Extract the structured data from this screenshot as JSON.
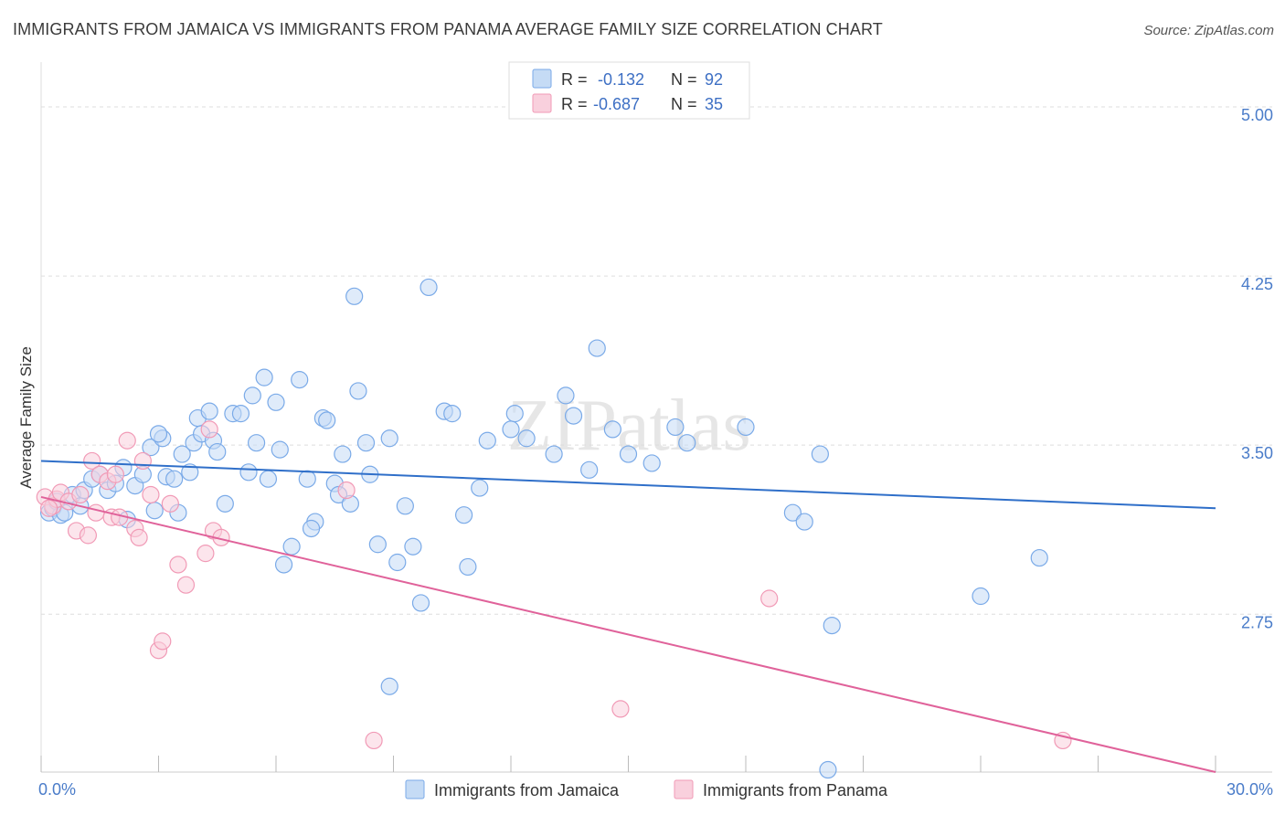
{
  "title": "IMMIGRANTS FROM JAMAICA VS IMMIGRANTS FROM PANAMA AVERAGE FAMILY SIZE CORRELATION CHART",
  "source": "Source: ZipAtlas.com",
  "watermark": "ZIPatlas",
  "colors": {
    "jamaica": "#7aaae8",
    "jamaica_fill": "#c5dbf5",
    "jamaica_line": "#2f6fc9",
    "panama": "#f19ab6",
    "panama_fill": "#f9d0dd",
    "panama_line": "#e0629a",
    "tick_text": "#4a7cc9",
    "grid": "#dddddd"
  },
  "legend": {
    "rows": [
      {
        "r_label": "R =",
        "r_value": "-0.132",
        "n_label": "N =",
        "n_value": "92"
      },
      {
        "r_label": "R =",
        "r_value": "-0.687",
        "n_label": "N =",
        "n_value": "35"
      }
    ]
  },
  "chart_data": {
    "type": "scatter",
    "title": "IMMIGRANTS FROM JAMAICA VS IMMIGRANTS FROM PANAMA AVERAGE FAMILY SIZE CORRELATION CHART",
    "xlabel": "",
    "ylabel": "Average Family Size",
    "xlim": [
      0,
      30
    ],
    "ylim": [
      2.05,
      5.15
    ],
    "x_tick_labels": [
      "0.0%",
      "30.0%"
    ],
    "y_ticks": [
      2.75,
      3.5,
      4.25,
      5.0
    ],
    "y_tick_labels": [
      "2.75",
      "3.50",
      "4.25",
      "5.00"
    ],
    "grid": true,
    "legend_position": "bottom",
    "series": [
      {
        "name": "Immigrants from Jamaica",
        "r": -0.132,
        "n": 92,
        "trend": {
          "x": [
            0,
            30
          ],
          "y": [
            3.43,
            3.22
          ]
        },
        "points": [
          [
            0.2,
            3.2
          ],
          [
            0.3,
            3.22
          ],
          [
            0.4,
            3.25
          ],
          [
            0.5,
            3.19
          ],
          [
            0.6,
            3.2
          ],
          [
            0.8,
            3.28
          ],
          [
            1.0,
            3.23
          ],
          [
            1.1,
            3.3
          ],
          [
            1.3,
            3.35
          ],
          [
            1.5,
            3.37
          ],
          [
            1.7,
            3.3
          ],
          [
            1.9,
            3.33
          ],
          [
            2.1,
            3.4
          ],
          [
            2.2,
            3.17
          ],
          [
            2.4,
            3.32
          ],
          [
            2.6,
            3.37
          ],
          [
            2.8,
            3.49
          ],
          [
            2.9,
            3.21
          ],
          [
            3.1,
            3.53
          ],
          [
            3.2,
            3.36
          ],
          [
            3.4,
            3.35
          ],
          [
            3.5,
            3.2
          ],
          [
            3.6,
            3.46
          ],
          [
            3.8,
            3.38
          ],
          [
            3.9,
            3.51
          ],
          [
            4.0,
            3.62
          ],
          [
            4.1,
            3.55
          ],
          [
            4.3,
            3.65
          ],
          [
            4.4,
            3.52
          ],
          [
            4.5,
            3.47
          ],
          [
            4.7,
            3.24
          ],
          [
            4.9,
            3.64
          ],
          [
            5.1,
            3.64
          ],
          [
            5.3,
            3.38
          ],
          [
            5.4,
            3.72
          ],
          [
            5.5,
            3.51
          ],
          [
            5.7,
            3.8
          ],
          [
            5.8,
            3.35
          ],
          [
            6.0,
            3.69
          ],
          [
            6.1,
            3.48
          ],
          [
            6.2,
            2.97
          ],
          [
            6.4,
            3.05
          ],
          [
            6.6,
            3.79
          ],
          [
            6.8,
            3.35
          ],
          [
            7.0,
            3.16
          ],
          [
            7.2,
            3.62
          ],
          [
            7.3,
            3.61
          ],
          [
            7.5,
            3.33
          ],
          [
            7.6,
            3.28
          ],
          [
            7.7,
            3.46
          ],
          [
            7.9,
            3.24
          ],
          [
            8.0,
            4.16
          ],
          [
            8.1,
            3.74
          ],
          [
            8.3,
            3.51
          ],
          [
            8.4,
            3.37
          ],
          [
            8.6,
            3.06
          ],
          [
            8.9,
            3.53
          ],
          [
            8.9,
            2.43
          ],
          [
            9.1,
            2.98
          ],
          [
            9.3,
            3.23
          ],
          [
            9.5,
            3.05
          ],
          [
            9.7,
            2.8
          ],
          [
            9.9,
            4.2
          ],
          [
            10.3,
            3.65
          ],
          [
            10.5,
            3.64
          ],
          [
            10.8,
            3.19
          ],
          [
            10.9,
            2.96
          ],
          [
            11.2,
            3.31
          ],
          [
            12.0,
            3.57
          ],
          [
            12.1,
            3.64
          ],
          [
            12.4,
            3.53
          ],
          [
            13.1,
            3.46
          ],
          [
            13.4,
            3.72
          ],
          [
            13.6,
            3.63
          ],
          [
            14.0,
            3.39
          ],
          [
            14.2,
            3.93
          ],
          [
            14.6,
            3.57
          ],
          [
            15.0,
            3.46
          ],
          [
            15.6,
            3.42
          ],
          [
            16.2,
            3.58
          ],
          [
            16.5,
            3.51
          ],
          [
            18.0,
            3.58
          ],
          [
            19.2,
            3.2
          ],
          [
            19.5,
            3.16
          ],
          [
            19.9,
            3.46
          ],
          [
            20.2,
            2.7
          ],
          [
            20.1,
            2.06
          ],
          [
            24.0,
            2.83
          ],
          [
            25.5,
            3.0
          ],
          [
            11.4,
            3.52
          ],
          [
            6.9,
            3.13
          ],
          [
            3.0,
            3.55
          ]
        ]
      },
      {
        "name": "Immigrants from Panama",
        "r": -0.687,
        "n": 35,
        "trend": {
          "x": [
            0,
            30
          ],
          "y": [
            3.27,
            2.05
          ]
        },
        "points": [
          [
            0.1,
            3.27
          ],
          [
            0.3,
            3.23
          ],
          [
            0.4,
            3.26
          ],
          [
            0.5,
            3.29
          ],
          [
            0.7,
            3.25
          ],
          [
            0.9,
            3.12
          ],
          [
            1.0,
            3.28
          ],
          [
            1.2,
            3.1
          ],
          [
            1.3,
            3.43
          ],
          [
            1.4,
            3.2
          ],
          [
            1.5,
            3.37
          ],
          [
            1.7,
            3.34
          ],
          [
            1.8,
            3.18
          ],
          [
            1.9,
            3.37
          ],
          [
            2.0,
            3.18
          ],
          [
            2.2,
            3.52
          ],
          [
            2.4,
            3.13
          ],
          [
            2.5,
            3.09
          ],
          [
            2.6,
            3.43
          ],
          [
            2.8,
            3.28
          ],
          [
            3.0,
            2.59
          ],
          [
            3.1,
            2.63
          ],
          [
            3.3,
            3.24
          ],
          [
            3.5,
            2.97
          ],
          [
            3.7,
            2.88
          ],
          [
            4.2,
            3.02
          ],
          [
            4.3,
            3.57
          ],
          [
            4.4,
            3.12
          ],
          [
            4.6,
            3.09
          ],
          [
            7.8,
            3.3
          ],
          [
            8.5,
            2.19
          ],
          [
            14.8,
            2.33
          ],
          [
            18.6,
            2.82
          ],
          [
            26.1,
            2.19
          ],
          [
            0.2,
            3.22
          ]
        ]
      }
    ]
  }
}
